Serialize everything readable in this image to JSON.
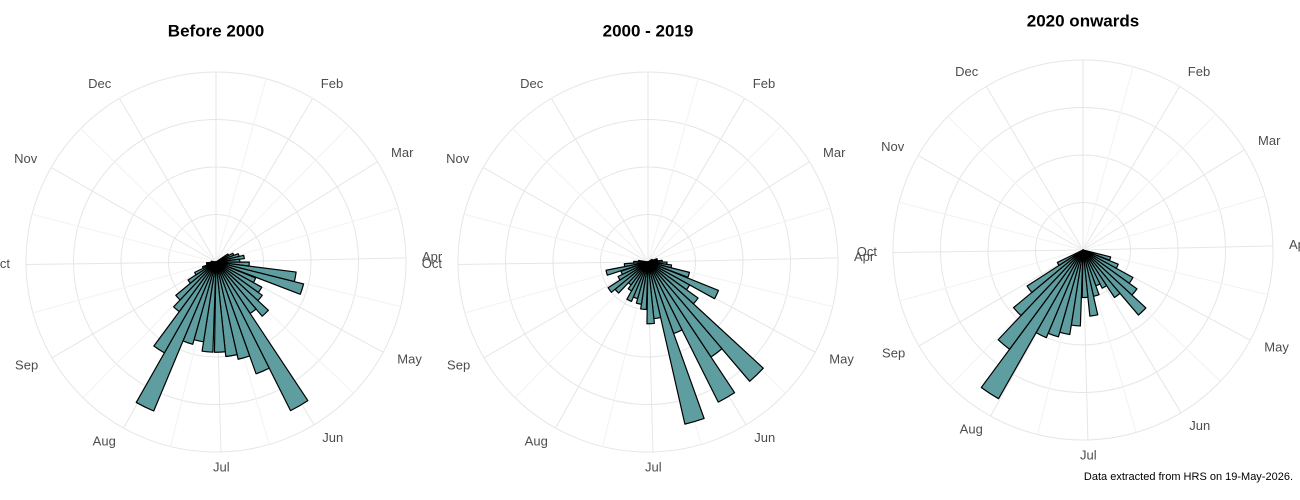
{
  "chart_data": [
    {
      "type": "polar-bar",
      "title": "Before 2000",
      "color": "#5f9ea0",
      "xlim": [
        1,
        366
      ],
      "bar_width": 7,
      "rlim": [
        0,
        4
      ],
      "rticks": [
        1,
        2,
        3,
        4
      ],
      "xticks": [
        {
          "value": 32,
          "label": "Feb"
        },
        {
          "value": 60,
          "label": "Mar"
        },
        {
          "value": 91,
          "label": "Apr"
        },
        {
          "value": 121,
          "label": "May"
        },
        {
          "value": 152,
          "label": "Jun"
        },
        {
          "value": 182,
          "label": "Jul"
        },
        {
          "value": 213,
          "label": "Aug"
        },
        {
          "value": 244,
          "label": "Sep"
        },
        {
          "value": 274,
          "label": "Oct"
        },
        {
          "value": 305,
          "label": "Nov"
        },
        {
          "value": 335,
          "label": "Dec"
        }
      ],
      "x": [
        61,
        68,
        75,
        82,
        89,
        96,
        103,
        110,
        118,
        125,
        132,
        139,
        146,
        153,
        160,
        167,
        174,
        181,
        189,
        196,
        203,
        210,
        217,
        224,
        231,
        238,
        245,
        252,
        260,
        267,
        274,
        281
      ],
      "values": [
        0.3,
        0.4,
        0.5,
        0.6,
        0.5,
        0.7,
        1.7,
        1.9,
        0.9,
        1.1,
        1.2,
        1.5,
        1.3,
        3.5,
        2.5,
        2.1,
        2.0,
        1.9,
        1.9,
        1.7,
        1.8,
        3.4,
        2.2,
        1.3,
        1.1,
        0.7,
        0.5,
        0.3,
        0.2,
        0.2,
        0.1,
        0.1
      ]
    },
    {
      "type": "polar-bar",
      "title": "2000 - 2019",
      "color": "#5f9ea0",
      "xlim": [
        1,
        366
      ],
      "bar_width": 7,
      "rlim": [
        0,
        4
      ],
      "rticks": [
        1,
        2,
        3,
        4
      ],
      "xticks": [
        {
          "value": 32,
          "label": "Feb"
        },
        {
          "value": 60,
          "label": "Mar"
        },
        {
          "value": 91,
          "label": "Apr"
        },
        {
          "value": 121,
          "label": "May"
        },
        {
          "value": 152,
          "label": "Jun"
        },
        {
          "value": 182,
          "label": "Jul"
        },
        {
          "value": 213,
          "label": "Aug"
        },
        {
          "value": 244,
          "label": "Sep"
        },
        {
          "value": 274,
          "label": "Oct"
        },
        {
          "value": 305,
          "label": "Nov"
        },
        {
          "value": 335,
          "label": "Dec"
        }
      ],
      "x": [
        61,
        68,
        75,
        82,
        89,
        96,
        103,
        110,
        118,
        125,
        132,
        139,
        146,
        153,
        160,
        167,
        174,
        181,
        189,
        196,
        203,
        210,
        217,
        224,
        231,
        238,
        245,
        252,
        260,
        267,
        274,
        281
      ],
      "values": [
        0.1,
        0.1,
        0.2,
        0.2,
        0.3,
        0.4,
        0.5,
        0.9,
        1.6,
        1.0,
        1.3,
        3.3,
        2.4,
        3.3,
        1.6,
        3.5,
        1.2,
        1.3,
        1.0,
        0.9,
        0.8,
        0.9,
        0.7,
        0.6,
        0.9,
        1.0,
        0.7,
        0.6,
        0.9,
        0.5,
        0.3,
        0.2
      ]
    },
    {
      "type": "polar-bar",
      "title": "2020 onwards",
      "color": "#5f9ea0",
      "xlim": [
        1,
        366
      ],
      "bar_width": 7,
      "rlim": [
        0,
        4
      ],
      "rticks": [
        1,
        2,
        3,
        4
      ],
      "xticks": [
        {
          "value": 32,
          "label": "Feb"
        },
        {
          "value": 60,
          "label": "Mar"
        },
        {
          "value": 91,
          "label": "Apr"
        },
        {
          "value": 121,
          "label": "May"
        },
        {
          "value": 152,
          "label": "Jun"
        },
        {
          "value": 182,
          "label": "Jul"
        },
        {
          "value": 213,
          "label": "Aug"
        },
        {
          "value": 244,
          "label": "Sep"
        },
        {
          "value": 274,
          "label": "Oct"
        },
        {
          "value": 305,
          "label": "Nov"
        },
        {
          "value": 335,
          "label": "Dec"
        }
      ],
      "x": [
        110,
        118,
        125,
        132,
        139,
        146,
        153,
        160,
        167,
        174,
        181,
        189,
        196,
        203,
        210,
        217,
        224,
        231,
        238,
        245
      ],
      "values": [
        0.6,
        0.8,
        1.2,
        1.4,
        1.8,
        1.2,
        0.9,
        0.8,
        1.0,
        1.4,
        1.0,
        1.6,
        1.8,
        1.9,
        2.0,
        3.6,
        2.6,
        1.9,
        1.4,
        0.6
      ]
    }
  ],
  "caption": "Data extracted from HRS on 19-May-2026."
}
